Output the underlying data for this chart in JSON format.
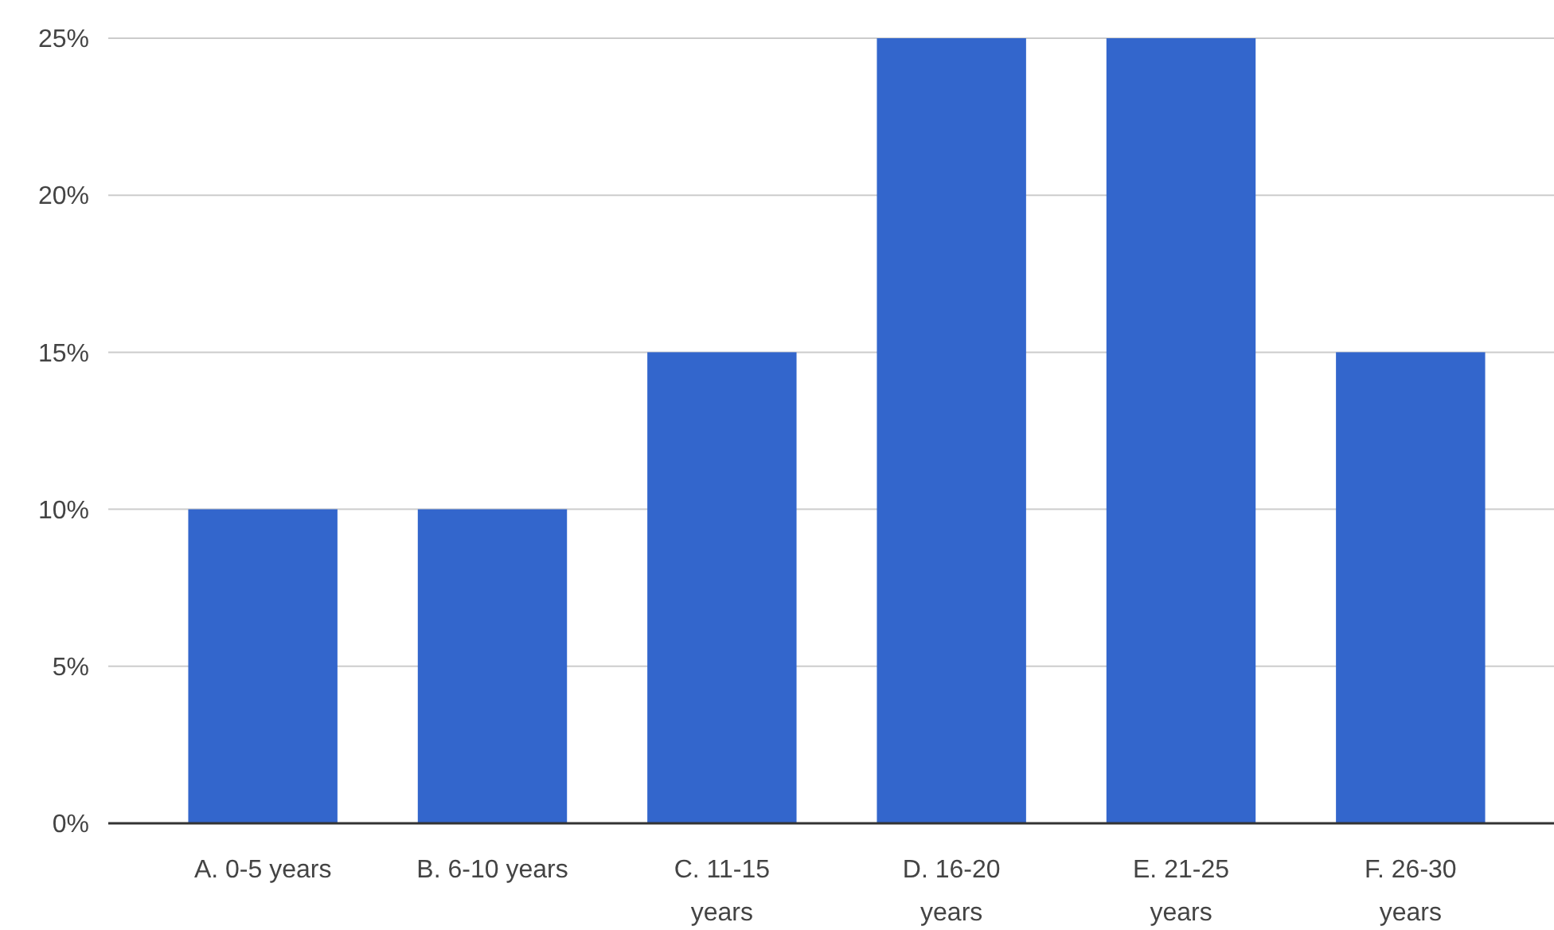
{
  "chart_data": {
    "type": "bar",
    "categories": [
      "A. 0-5 years",
      "B. 6-10 years",
      "C. 11-15 years",
      "D. 16-20 years",
      "E. 21-25 years",
      "F. 26-30 years"
    ],
    "values": [
      10,
      10,
      15,
      25,
      25,
      15
    ],
    "color": "#3366cc",
    "ylim": [
      0,
      25
    ],
    "yticks": [
      {
        "value": 0,
        "label": "0%"
      },
      {
        "value": 5,
        "label": "5%"
      },
      {
        "value": 10,
        "label": "10%"
      },
      {
        "value": 15,
        "label": "15%"
      },
      {
        "value": 20,
        "label": "20%"
      },
      {
        "value": 25,
        "label": "25%"
      }
    ],
    "grid": "y"
  }
}
